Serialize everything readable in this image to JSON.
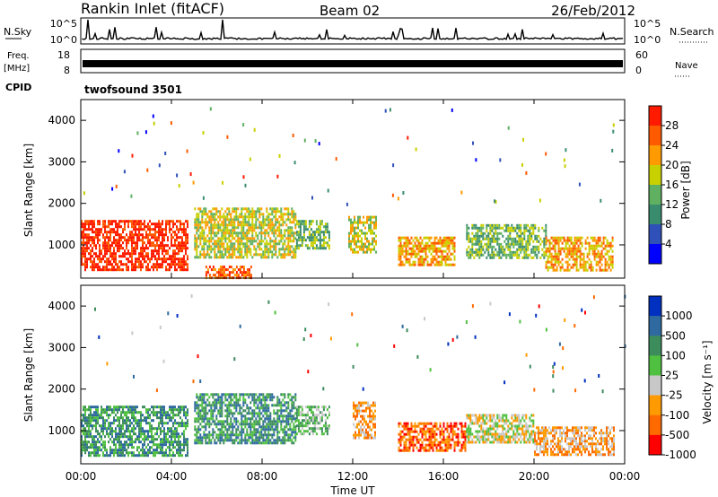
{
  "header": {
    "station": "Rankin Inlet (fitACF)",
    "beam": "Beam 02",
    "date": "26/Feb/2012"
  },
  "top_panels": {
    "nsky_label": "N.Sky",
    "nsky_ticks": [
      "10^5",
      "10^0"
    ],
    "nsearch_label": "N.Search",
    "nsearch_ticks": [
      "10^5",
      "10^0"
    ],
    "freq_label": "Freq.",
    "freq_unit": "[MHz]",
    "freq_ticks": [
      "18",
      "8"
    ],
    "nave_label": "Nave",
    "nave_ticks": [
      "60",
      "0"
    ],
    "cpid_label": "CPID",
    "cpid_value": "twofsound 3501"
  },
  "colors": {
    "power": [
      "#0000ff",
      "#2e50b8",
      "#3a8c6e",
      "#5fb060",
      "#c8d000",
      "#ff9a00",
      "#ff5a00",
      "#ff1a00"
    ],
    "velocity": [
      "#0030c0",
      "#2e6aa0",
      "#3c8c5c",
      "#50c040",
      "#c8c8c8",
      "#ff9a00",
      "#ff6a00",
      "#ff0000"
    ]
  },
  "chart_data": [
    {
      "type": "heatmap",
      "name": "power",
      "ylabel": "Slant Range [km]",
      "yticks": [
        "1000",
        "2000",
        "3000",
        "4000"
      ],
      "ylim": [
        200,
        4500
      ],
      "xlim_hours": [
        0,
        24
      ],
      "colorbar_label": "Power [dB]",
      "colorbar_ticks": [
        "4",
        "8",
        "12",
        "16",
        "20",
        "24",
        "28"
      ],
      "regions": [
        {
          "t0": 0.0,
          "t1": 4.7,
          "r0": 400,
          "r1": 1600,
          "level": 7
        },
        {
          "t0": 5.0,
          "t1": 9.5,
          "r0": 700,
          "r1": 1900,
          "level": 4
        },
        {
          "t0": 9.5,
          "t1": 11.0,
          "r0": 900,
          "r1": 1600,
          "level": 3
        },
        {
          "t0": 11.8,
          "t1": 13.0,
          "r0": 800,
          "r1": 1700,
          "level": 4
        },
        {
          "t0": 14.0,
          "t1": 16.5,
          "r0": 500,
          "r1": 1200,
          "level": 5
        },
        {
          "t0": 17.0,
          "t1": 20.5,
          "r0": 700,
          "r1": 1500,
          "level": 3
        },
        {
          "t0": 20.5,
          "t1": 23.5,
          "r0": 400,
          "r1": 1200,
          "level": 5
        },
        {
          "t0": 5.5,
          "t1": 7.5,
          "r0": 200,
          "r1": 500,
          "level": 6
        }
      ]
    },
    {
      "type": "heatmap",
      "name": "velocity",
      "ylabel": "Slant Range [km]",
      "yticks": [
        "1000",
        "2000",
        "3000",
        "4000"
      ],
      "ylim": [
        200,
        4500
      ],
      "xlim_hours": [
        0,
        24
      ],
      "xlabel": "Time UT",
      "xticks": [
        "00:00",
        "04:00",
        "08:00",
        "12:00",
        "16:00",
        "20:00",
        "00:00"
      ],
      "colorbar_label": "Velocity [m s⁻¹]",
      "colorbar_ticks": [
        "1000",
        "500",
        "100",
        "25",
        "-25",
        "-100",
        "-500",
        "-1000"
      ],
      "regions": [
        {
          "t0": 0.0,
          "t1": 4.7,
          "r0": 400,
          "r1": 1600,
          "level": 2
        },
        {
          "t0": 5.0,
          "t1": 9.5,
          "r0": 700,
          "r1": 1900,
          "level": 2
        },
        {
          "t0": 9.5,
          "t1": 11.0,
          "r0": 900,
          "r1": 1600,
          "level": 3
        },
        {
          "t0": 12.0,
          "t1": 13.0,
          "r0": 800,
          "r1": 1700,
          "level": 5
        },
        {
          "t0": 14.0,
          "t1": 17.0,
          "r0": 500,
          "r1": 1200,
          "level": 6
        },
        {
          "t0": 17.0,
          "t1": 20.0,
          "r0": 700,
          "r1": 1400,
          "level": 4
        },
        {
          "t0": 20.0,
          "t1": 23.5,
          "r0": 400,
          "r1": 1100,
          "level": 5
        }
      ]
    }
  ]
}
